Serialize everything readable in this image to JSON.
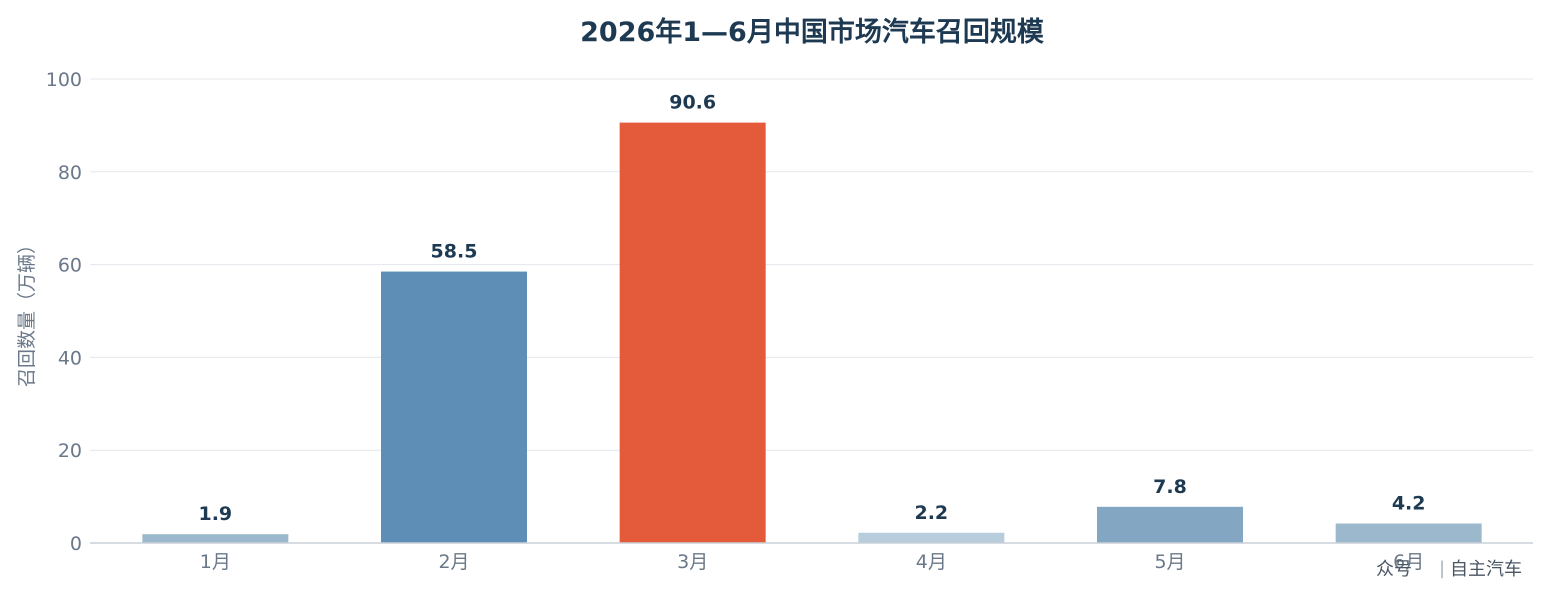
{
  "chart_data": {
    "type": "bar",
    "title": "2026年1—6月中国市场汽车召回规模",
    "xlabel": "",
    "ylabel": "召回数量（万辆）",
    "categories": [
      "1月",
      "2月",
      "3月",
      "4月",
      "5月",
      "6月"
    ],
    "values": [
      1.9,
      58.5,
      90.6,
      2.2,
      7.8,
      4.2
    ],
    "data_labels": [
      "1.9",
      "58.5",
      "90.6",
      "2.2",
      "7.8",
      "4.2"
    ],
    "bar_colors": [
      "#9bb8cc",
      "#5e8eb6",
      "#e35b3a",
      "#b8cddb",
      "#83a7c2",
      "#9bb8cc"
    ],
    "ylim": [
      0,
      100
    ],
    "yticks": [
      0,
      20,
      40,
      60,
      80,
      100
    ],
    "grid": true,
    "legend": "none"
  },
  "watermark": {
    "source": "众号",
    "separator": "|",
    "name": "自主汽车"
  }
}
